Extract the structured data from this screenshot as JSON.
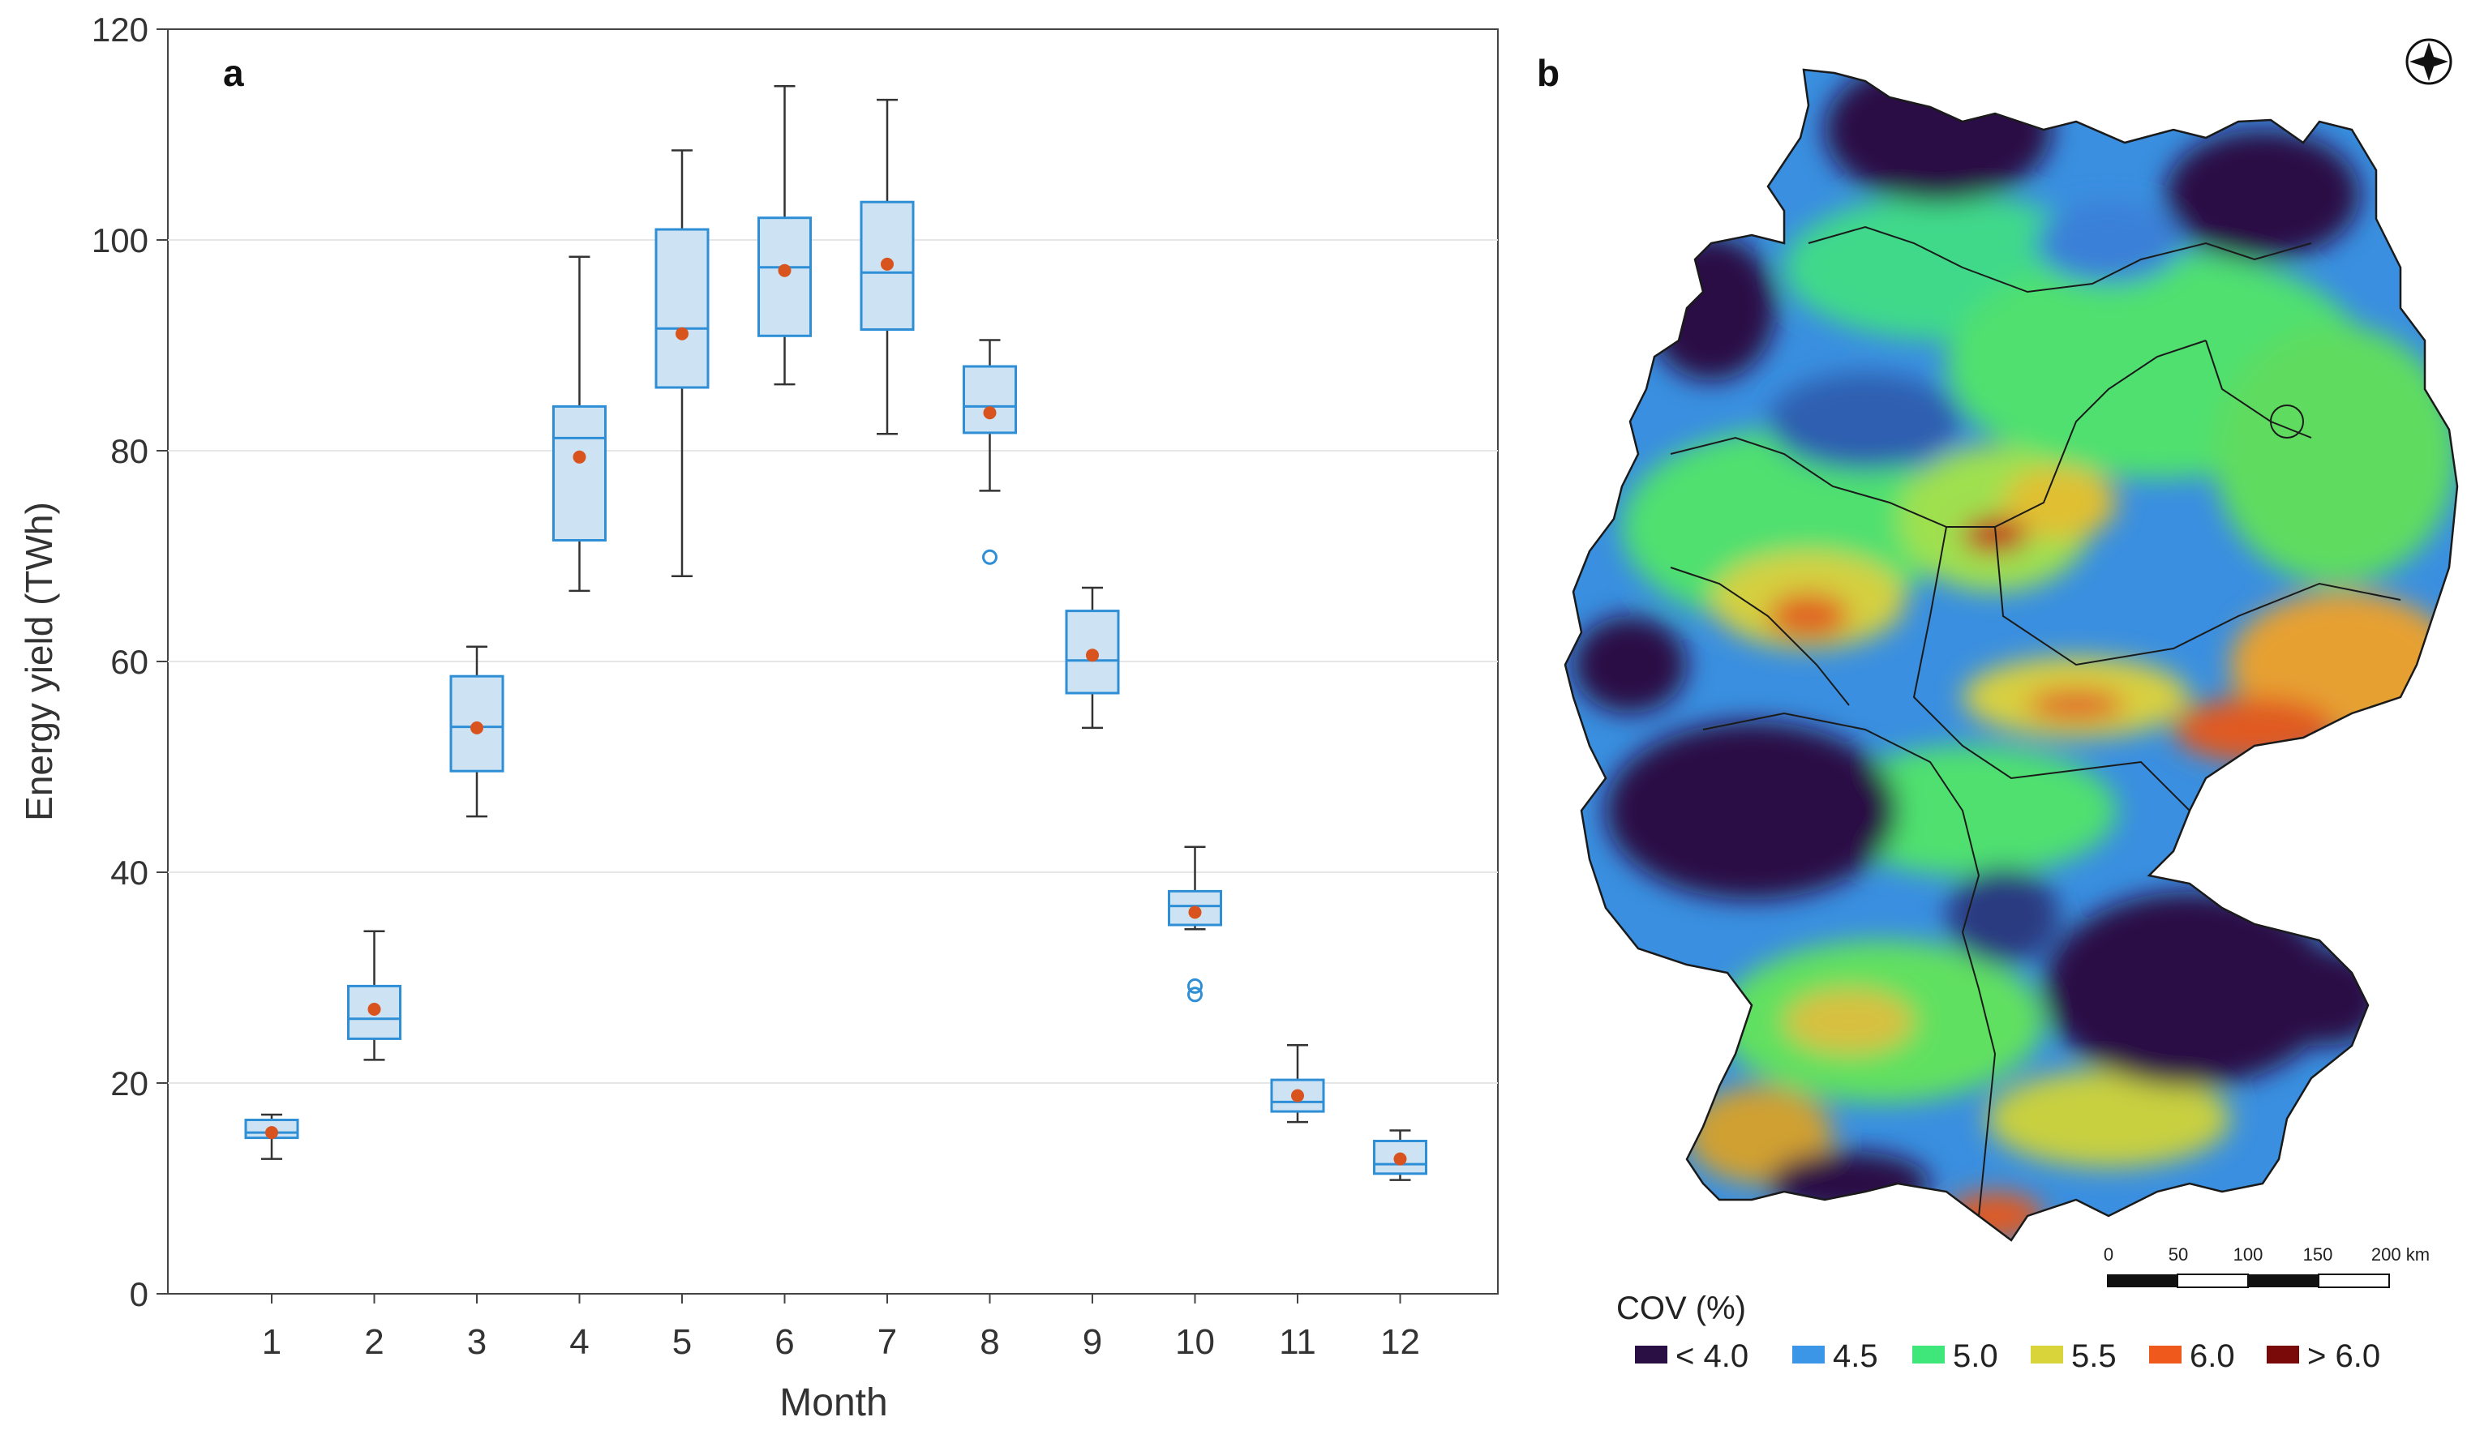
{
  "chart_data": [
    {
      "panel": "a",
      "type": "box",
      "xlabel": "Month",
      "ylabel": "Energy yield (TWh)",
      "ylim": [
        0,
        120
      ],
      "yticks": [
        0,
        20,
        40,
        60,
        80,
        100,
        120
      ],
      "grid": "horizontal",
      "categories": [
        "1",
        "2",
        "3",
        "4",
        "5",
        "6",
        "7",
        "8",
        "9",
        "10",
        "11",
        "12"
      ],
      "boxes": [
        {
          "month": "1",
          "min": 12.8,
          "q1": 14.8,
          "median": 15.3,
          "q3": 16.5,
          "max": 17.0,
          "mean": 15.3,
          "outliers": []
        },
        {
          "month": "2",
          "min": 22.2,
          "q1": 24.2,
          "median": 26.1,
          "q3": 29.2,
          "max": 34.4,
          "mean": 27.0,
          "outliers": []
        },
        {
          "month": "3",
          "min": 45.3,
          "q1": 49.6,
          "median": 53.8,
          "q3": 58.6,
          "max": 61.4,
          "mean": 53.7,
          "outliers": []
        },
        {
          "month": "4",
          "min": 66.7,
          "q1": 71.5,
          "median": 81.2,
          "q3": 84.2,
          "max": 98.4,
          "mean": 79.4,
          "outliers": []
        },
        {
          "month": "5",
          "min": 68.1,
          "q1": 86.0,
          "median": 91.6,
          "q3": 101.0,
          "max": 108.5,
          "mean": 91.1,
          "outliers": []
        },
        {
          "month": "6",
          "min": 86.3,
          "q1": 90.9,
          "median": 97.4,
          "q3": 102.1,
          "max": 114.6,
          "mean": 97.1,
          "outliers": []
        },
        {
          "month": "7",
          "min": 81.6,
          "q1": 91.5,
          "median": 96.9,
          "q3": 103.6,
          "max": 113.3,
          "mean": 97.7,
          "outliers": []
        },
        {
          "month": "8",
          "min": 76.2,
          "q1": 81.7,
          "median": 84.2,
          "q3": 88.0,
          "max": 90.5,
          "mean": 83.6,
          "outliers": [
            69.9
          ]
        },
        {
          "month": "9",
          "min": 53.7,
          "q1": 57.0,
          "median": 60.1,
          "q3": 64.8,
          "max": 67.0,
          "mean": 60.6,
          "outliers": []
        },
        {
          "month": "10",
          "min": 34.6,
          "q1": 35.0,
          "median": 36.8,
          "q3": 38.2,
          "max": 42.4,
          "mean": 36.2,
          "outliers": [
            29.2,
            28.4
          ]
        },
        {
          "month": "11",
          "min": 16.3,
          "q1": 17.3,
          "median": 18.2,
          "q3": 20.3,
          "max": 23.6,
          "mean": 18.8,
          "outliers": []
        },
        {
          "month": "12",
          "min": 10.8,
          "q1": 11.4,
          "median": 12.3,
          "q3": 14.5,
          "max": 15.5,
          "mean": 12.8,
          "outliers": []
        }
      ],
      "colors": {
        "box_edge": "#2e8fd6",
        "box_fill": "#cde3f3",
        "whisker": "#333333",
        "mean_dot": "#d9531e",
        "grid": "#e6e6e6"
      }
    },
    {
      "panel": "b",
      "type": "heatmap",
      "title": "COV (%)",
      "legend": [
        {
          "label": "< 4.0",
          "color": "#2a0f45"
        },
        {
          "label": "4.5",
          "color": "#3c96e8"
        },
        {
          "label": "5.0",
          "color": "#3fe67a"
        },
        {
          "label": "5.5",
          "color": "#d8d43a"
        },
        {
          "label": "6.0",
          "color": "#ef5a1c"
        },
        {
          "label": "> 6.0",
          "color": "#7a0a0a"
        }
      ],
      "scale_bar": {
        "labels": [
          "0",
          "50",
          "100",
          "150",
          "200 km"
        ]
      }
    }
  ]
}
